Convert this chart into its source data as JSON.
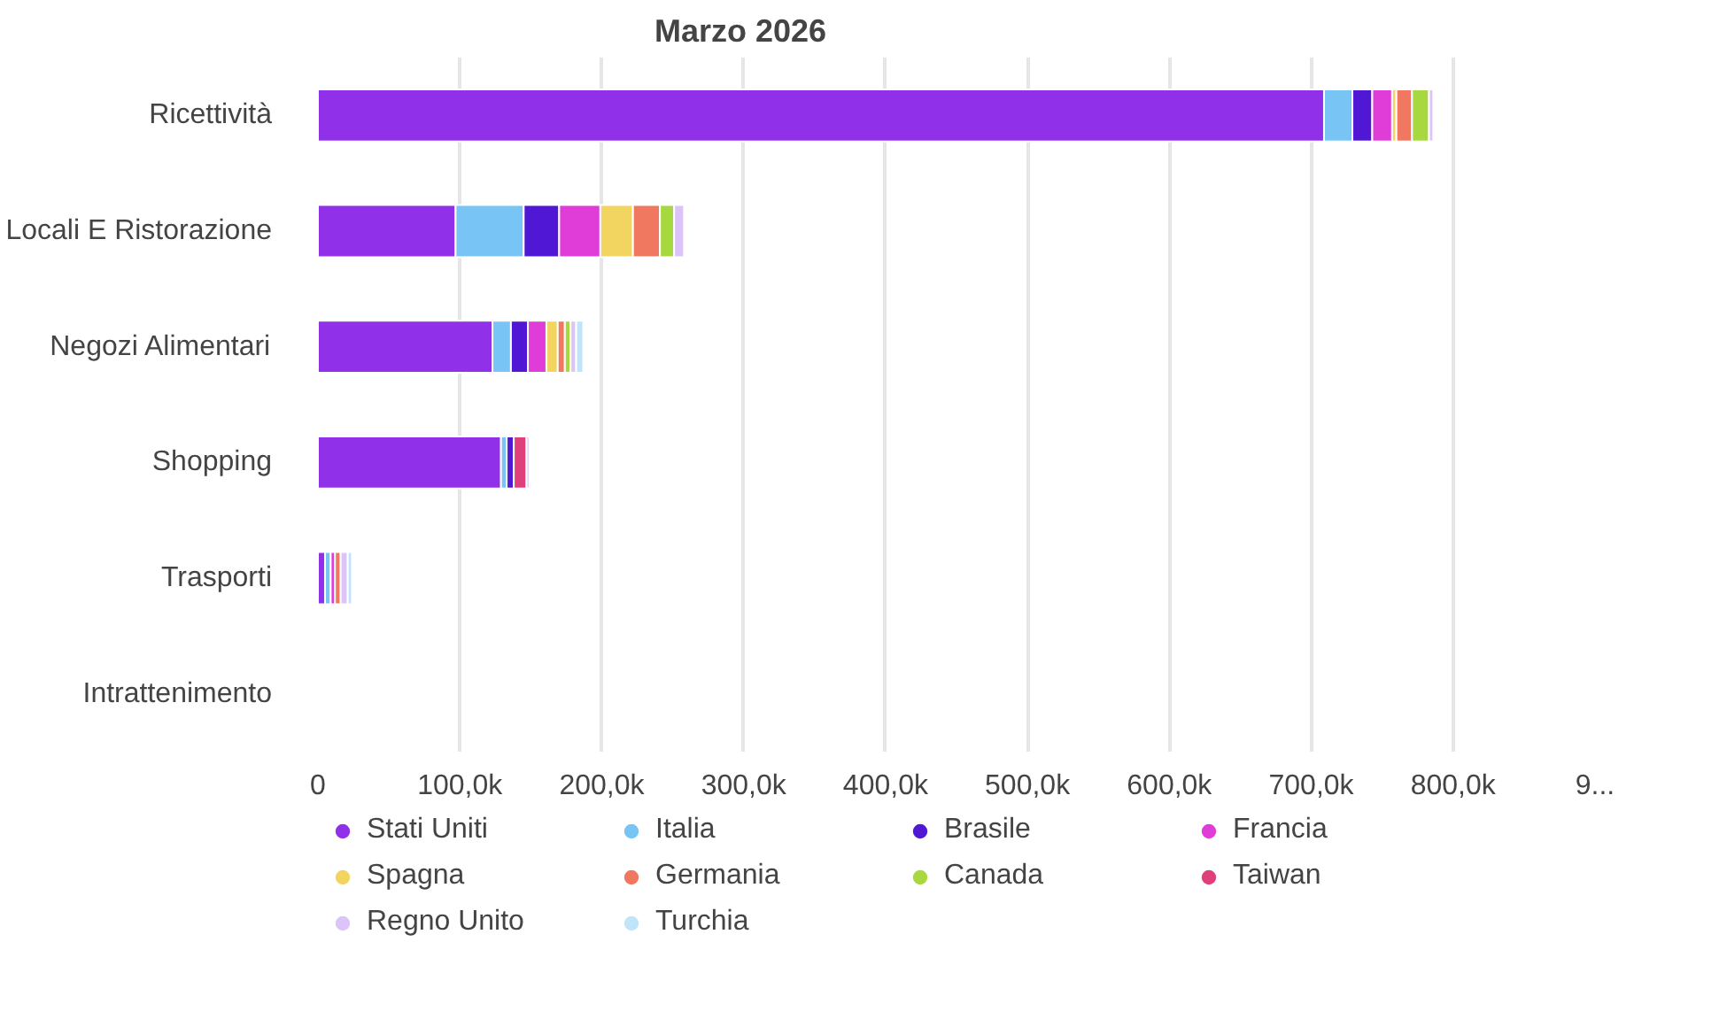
{
  "chart_data": {
    "type": "bar",
    "orientation": "horizontal",
    "stacked": true,
    "title": "Marzo 2026",
    "categories": [
      "Ricettività",
      "Locali E Ristorazione",
      "Negozi Alimentari",
      "Shopping",
      "Trasporti",
      "Intrattenimento"
    ],
    "series": [
      {
        "name": "Stati Uniti",
        "color": "#9030e8",
        "values": [
          709000,
          97000,
          123000,
          129000,
          5000,
          0
        ]
      },
      {
        "name": "Italia",
        "color": "#78c4f4",
        "values": [
          20000,
          48000,
          13000,
          4000,
          4000,
          0
        ]
      },
      {
        "name": "Brasile",
        "color": "#5018d4",
        "values": [
          14000,
          25000,
          12000,
          5000,
          0,
          0
        ]
      },
      {
        "name": "Francia",
        "color": "#e03cd8",
        "values": [
          14000,
          29000,
          13000,
          0,
          3000,
          0
        ]
      },
      {
        "name": "Spagna",
        "color": "#f2d560",
        "values": [
          3000,
          23000,
          8000,
          0,
          0,
          0
        ]
      },
      {
        "name": "Germania",
        "color": "#f07860",
        "values": [
          11000,
          19000,
          5000,
          0,
          4000,
          0
        ]
      },
      {
        "name": "Canada",
        "color": "#a8d840",
        "values": [
          12000,
          10000,
          4000,
          0,
          0,
          0
        ]
      },
      {
        "name": "Taiwan",
        "color": "#e0407a",
        "values": [
          0,
          0,
          0,
          9000,
          0,
          0
        ]
      },
      {
        "name": "Regno Unito",
        "color": "#dcc4f8",
        "values": [
          3000,
          7000,
          4000,
          2000,
          5000,
          0
        ]
      },
      {
        "name": "Turchia",
        "color": "#c0e4f8",
        "values": [
          0,
          0,
          5000,
          0,
          3000,
          0
        ]
      }
    ],
    "xlim": [
      0,
      900000
    ],
    "xticks": [
      0,
      {
        "value": 100000,
        "label": "100,0k"
      },
      {
        "value": 200000,
        "label": "200,0k"
      },
      {
        "value": 300000,
        "label": "300,0k"
      },
      {
        "value": 400000,
        "label": "400,0k"
      },
      {
        "value": 500000,
        "label": "500,0k"
      },
      {
        "value": 600000,
        "label": "600,0k"
      },
      {
        "value": 700000,
        "label": "700,0k"
      },
      {
        "value": 800000,
        "label": "800,0k"
      },
      {
        "value": 900000,
        "label": "9..."
      }
    ],
    "grid": "x",
    "legend": "bottom"
  }
}
